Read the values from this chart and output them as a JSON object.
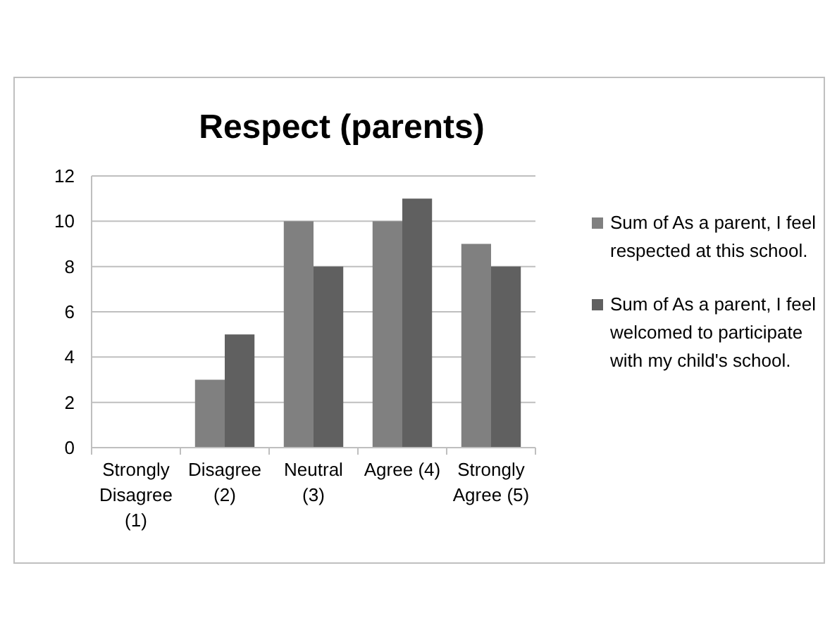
{
  "chart_data": {
    "type": "bar",
    "title": "Respect (parents)",
    "categories": [
      "Strongly Disagree (1)",
      "Disagree (2)",
      "Neutral (3)",
      "Agree (4)",
      "Strongly Agree (5)"
    ],
    "series": [
      {
        "name": "Sum of As a parent, I feel respected at this school.",
        "color": "#808080",
        "values": [
          0,
          3,
          10,
          10,
          9
        ]
      },
      {
        "name": "Sum of As a parent, I feel welcomed to participate with my child's school.",
        "color": "#606060",
        "values": [
          0,
          5,
          8,
          11,
          8
        ]
      }
    ],
    "ylim": [
      0,
      12
    ],
    "yticks": [
      0,
      2,
      4,
      6,
      8,
      10,
      12
    ],
    "grid": "y",
    "legend": "right"
  }
}
